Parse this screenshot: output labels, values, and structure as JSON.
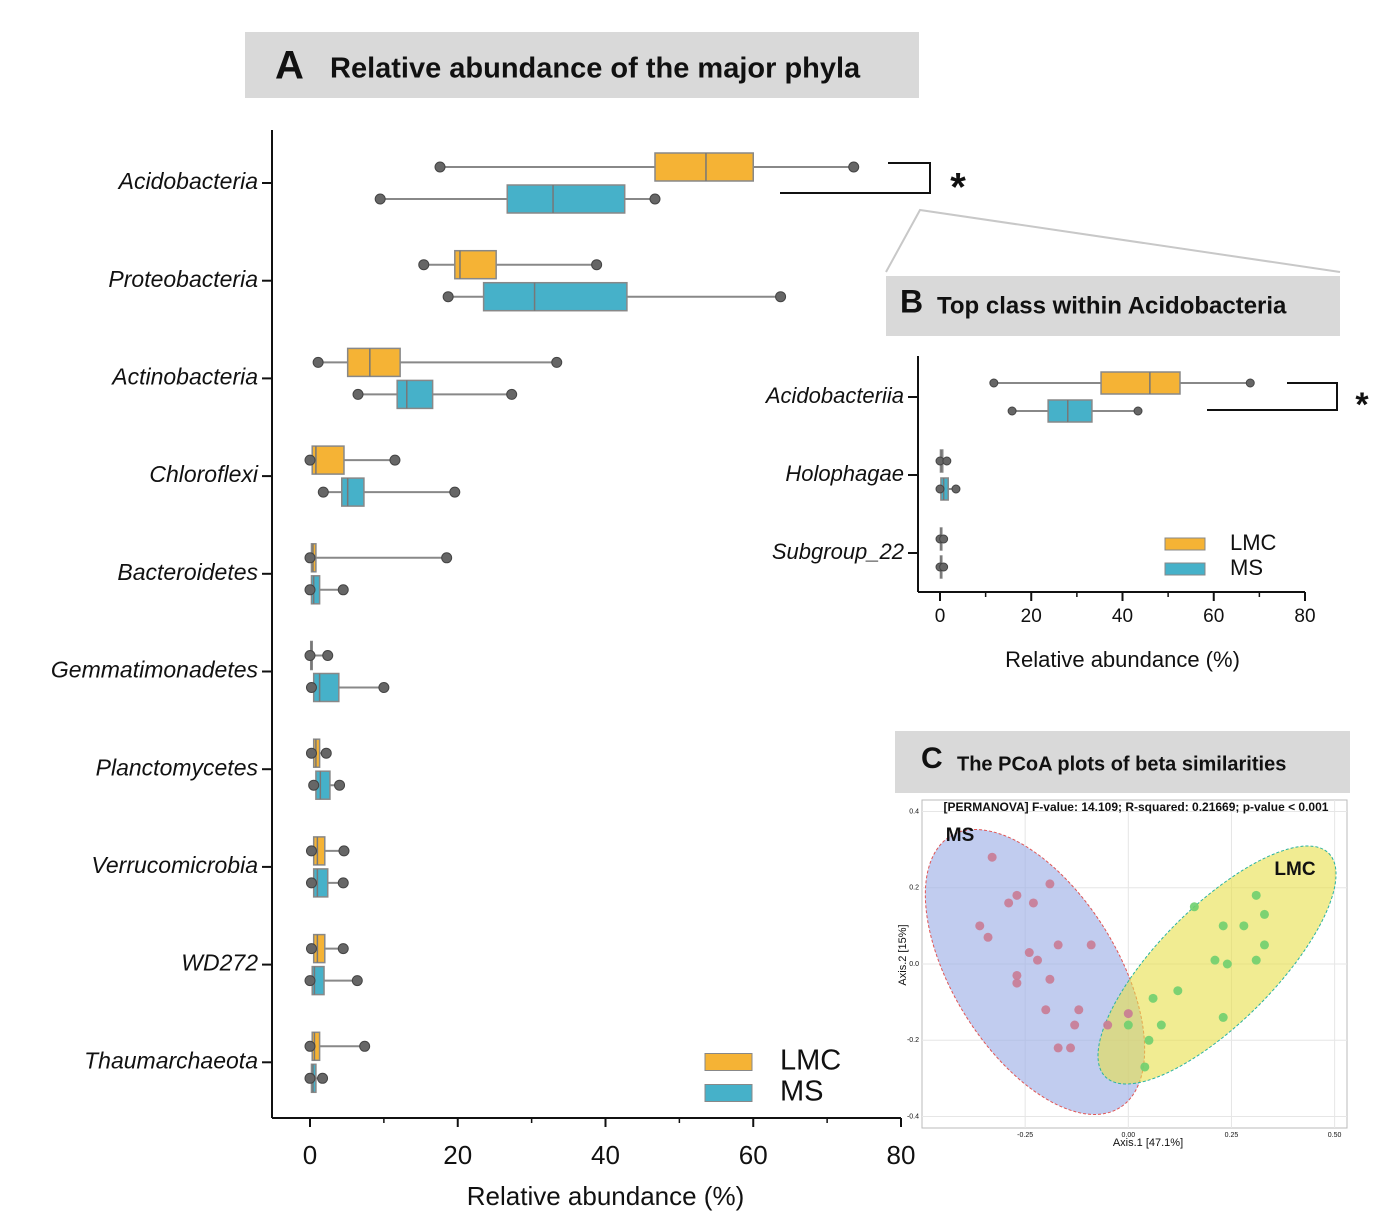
{
  "chart_data": [
    {
      "type": "boxplot",
      "panel_label": "A",
      "title": "Relative abundance of the major phyla",
      "categories": [
        "Acidobacteria",
        "Proteobacteria",
        "Actinobacteria",
        "Chloroflexi",
        "Bacteroidetes",
        "Gemmatimonadetes",
        "Planctomycetes",
        "Verrucomicrobia",
        "WD272",
        "Thaumarchaeota"
      ],
      "series": [
        {
          "name": "LMC",
          "color": "#f5b335",
          "stats": [
            [
              17.6,
              46.7,
              53.6,
              60,
              73.6
            ],
            [
              15.4,
              19.6,
              20.3,
              25.2,
              38.8
            ],
            [
              1.1,
              5.1,
              8.1,
              12.2,
              33.4
            ],
            [
              0,
              0.3,
              0.8,
              4.6,
              11.5
            ],
            [
              0,
              0.2,
              0.4,
              0.8,
              18.5
            ],
            [
              0,
              0.1,
              0.2,
              0.3,
              2.4
            ],
            [
              0.2,
              0.5,
              0.8,
              1.3,
              2.2
            ],
            [
              0.2,
              0.5,
              1,
              2,
              4.6
            ],
            [
              0.2,
              0.5,
              1,
              2,
              4.5
            ],
            [
              0,
              0.3,
              0.6,
              1.3,
              7.4
            ]
          ]
        },
        {
          "name": "MS",
          "color": "#46b1c9",
          "stats": [
            [
              9.5,
              26.7,
              32.9,
              42.6,
              46.7
            ],
            [
              18.7,
              23.5,
              30.4,
              42.9,
              63.7
            ],
            [
              6.5,
              11.8,
              13.1,
              16.6,
              27.3
            ],
            [
              1.8,
              4.3,
              5.1,
              7.3,
              19.6
            ],
            [
              0,
              0.2,
              0.5,
              1.3,
              4.5
            ],
            [
              0.2,
              0.5,
              1.3,
              3.9,
              10
            ],
            [
              0.5,
              0.8,
              1.4,
              2.7,
              4
            ],
            [
              0.2,
              0.5,
              1,
              2.4,
              4.5
            ],
            [
              0,
              0.3,
              0.6,
              1.9,
              6.4
            ],
            [
              0,
              0.2,
              0.4,
              0.8,
              1.7
            ]
          ]
        }
      ],
      "xlim": [
        0,
        80
      ],
      "xticks": [
        0,
        20,
        40,
        60,
        80
      ],
      "x_label": "Relative abundance (%)",
      "annotation": "*",
      "legend": "lower right"
    },
    {
      "type": "boxplot",
      "panel_label": "B",
      "title": "Top class within Acidobacteria",
      "categories": [
        "Acidobacteriia",
        "Holophagae",
        "Subgroup_22"
      ],
      "series": [
        {
          "name": "LMC",
          "color": "#f5b335",
          "stats": [
            [
              11.8,
              35.3,
              46,
              52.6,
              68
            ],
            [
              0,
              0.1,
              0.3,
              0.6,
              1.5
            ],
            [
              0,
              0.1,
              0.2,
              0.4,
              0.8
            ]
          ]
        },
        {
          "name": "MS",
          "color": "#46b1c9",
          "stats": [
            [
              15.8,
              23.7,
              28,
              33.3,
              43.4
            ],
            [
              0,
              0.2,
              0.8,
              1.8,
              3.5
            ],
            [
              0,
              0.1,
              0.2,
              0.4,
              0.8
            ]
          ]
        }
      ],
      "xlim": [
        0,
        80
      ],
      "xticks": [
        0,
        20,
        40,
        60,
        80
      ],
      "x_label": "Relative abundance (%)",
      "annotation": "*",
      "legend": "lower right"
    },
    {
      "type": "scatter",
      "panel_label": "C",
      "title": "The PCoA plots of beta similarities",
      "subtitle": "[PERMANOVA] F-value: 14.109; R-squared: 0.21669; p-value < 0.001",
      "x_label": "Axis.1   [47.1%]",
      "y_label": "Axis.2  [15%]",
      "series": [
        {
          "name": "MS",
          "color": "#c97b93",
          "x": [
            -0.33,
            -0.27,
            -0.29,
            -0.23,
            -0.19,
            -0.36,
            -0.34,
            -0.24,
            -0.22,
            -0.17,
            -0.09,
            -0.27,
            -0.27,
            -0.19,
            -0.2,
            -0.12,
            -0.13,
            -0.17,
            -0.14,
            -0.05,
            0
          ],
          "y": [
            0.28,
            0.18,
            0.16,
            0.16,
            0.21,
            0.1,
            0.07,
            0.03,
            0.01,
            0.05,
            0.05,
            -0.03,
            -0.05,
            -0.04,
            -0.12,
            -0.12,
            -0.16,
            -0.22,
            -0.22,
            -0.16,
            -0.13
          ]
        },
        {
          "name": "LMC",
          "color": "#6fcf6f",
          "x": [
            0.16,
            0.31,
            0.33,
            0.23,
            0.28,
            0.21,
            0.24,
            0.33,
            0.31,
            0.12,
            0.06,
            0.08,
            0.05,
            0.04,
            0,
            0.23
          ],
          "y": [
            0.15,
            0.18,
            0.13,
            0.1,
            0.1,
            0.01,
            0,
            0.05,
            0.01,
            -0.07,
            -0.09,
            -0.16,
            -0.2,
            -0.27,
            -0.16,
            -0.14
          ]
        }
      ],
      "xlim": [
        -0.5,
        0.53
      ],
      "xticks": [
        -0.25,
        {
          "value": 0,
          "label": "0.00"
        },
        0.25,
        {
          "value": 0.5,
          "label": "0.50"
        }
      ],
      "ylim": [
        -0.43,
        0.43
      ],
      "yticks": [
        -0.4,
        -0.2,
        {
          "value": 0,
          "label": "0.0"
        },
        0.2,
        0.4
      ],
      "grid": true
    }
  ]
}
